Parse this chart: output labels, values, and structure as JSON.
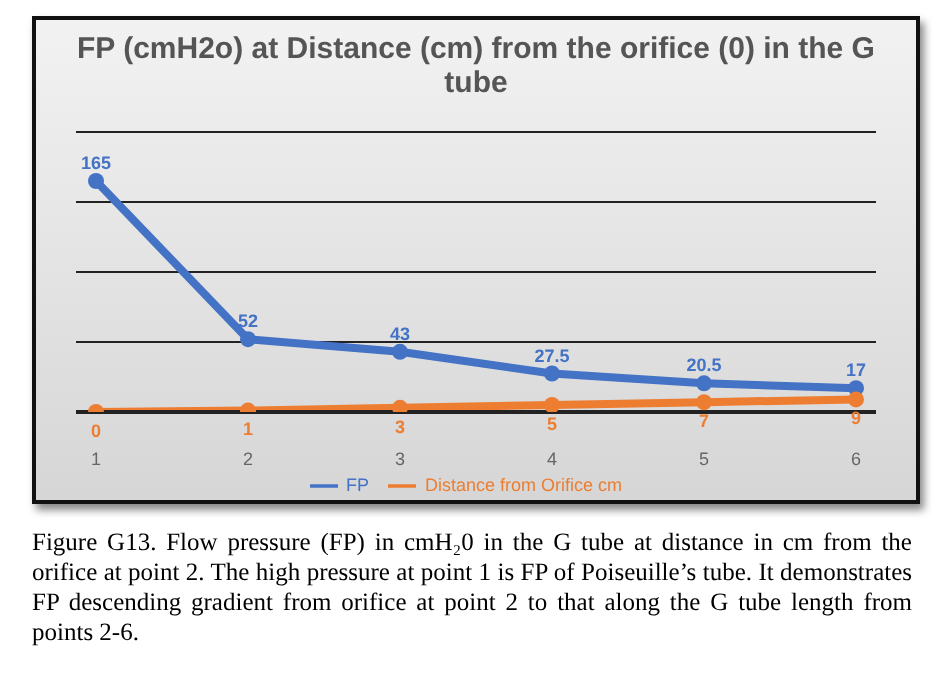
{
  "chart_data": {
    "type": "line",
    "title": "FP (cmH2o) at Distance (cm) from the orifice (0) in the G tube",
    "categories": [
      "1",
      "2",
      "3",
      "4",
      "5",
      "6"
    ],
    "series": [
      {
        "name": "FP",
        "color": "#4472c4",
        "values": [
          165,
          52,
          43,
          27.5,
          20.5,
          17
        ]
      },
      {
        "name": "Distance from Orifice cm",
        "color": "#ed7d31",
        "values": [
          0,
          1,
          3,
          5,
          7,
          9
        ]
      }
    ],
    "ylim": [
      0,
      200
    ],
    "yticks": [
      {
        "value": 0,
        "label": null
      },
      {
        "value": 50,
        "label": null
      },
      {
        "value": 100,
        "label": null
      },
      {
        "value": 150,
        "label": null
      },
      {
        "value": 200,
        "label": null
      }
    ],
    "tick_labels": "x",
    "grid": "y",
    "legend": "bottom",
    "marker": "circle",
    "line_style": "solid",
    "data_labels": true,
    "annotations": [
      "Figure G13. Flow pressure (FP) in cmH₂0 in the G tube at distance in cm from the orifice at point 2. The high pressure at point 1 is FP of Poiseuille’s tube. It demonstrates FP descending gradient from orifice at point 2 to that along the G tube length from points 2-6."
    ]
  }
}
